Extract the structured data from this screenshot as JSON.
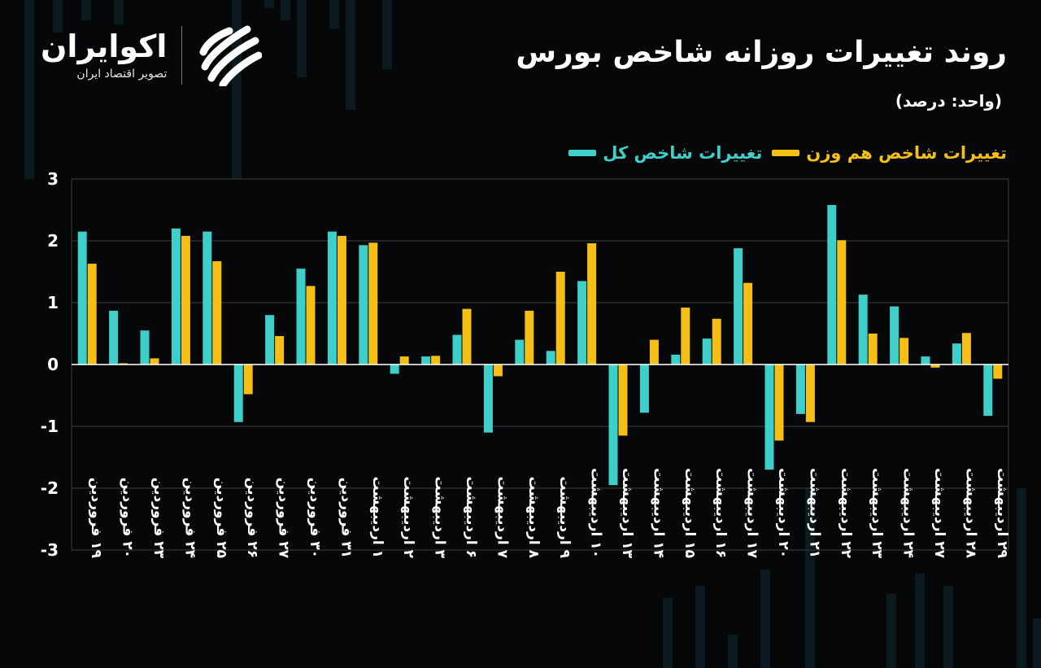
{
  "header": {
    "title": "روند تغییرات روزانه شاخص بورس",
    "unit": "(واحد: درصد)"
  },
  "logo": {
    "brand": "اکوایران",
    "tagline": "تصویر اقتصاد ایران",
    "icon": "ecoiran-swirl-icon"
  },
  "colors": {
    "background": "#050708",
    "total_index": "#3ecfca",
    "equal_weight": "#f6bf15",
    "grid": "#3a3d40"
  },
  "chart_data": {
    "type": "bar",
    "title": "روند تغییرات روزانه شاخص بورس",
    "ylabel": "(واحد: درصد)",
    "ylim": [
      -3,
      3
    ],
    "yticks": [
      3,
      2,
      1,
      0,
      -1,
      -2,
      -3
    ],
    "ytick_labels": [
      "3",
      "2",
      "1",
      "0",
      "-1",
      "-2",
      "-3"
    ],
    "grid": true,
    "legend_position": "top-right",
    "categories": [
      "۱۹ فروردین",
      "۲۰ فروردین",
      "۲۳ فروردین",
      "۲۴ فروردین",
      "۲۵ فروردین",
      "۲۶ فروردین",
      "۲۷ فروردین",
      "۳۰ فروردین",
      "۳۱ فروردین",
      "۱ اردیبهشت",
      "۲ اردیبهشت",
      "۳ اردیبهشت",
      "۶ اردیبهشت",
      "۷ اردیبهشت",
      "۸ اردیبهشت",
      "۹ اردیبهشت",
      "۱۰ اردیبهشت",
      "۱۳ اردیبهشت",
      "۱۴ اردیبهشت",
      "۱۵ اردیبهشت",
      "۱۶ اردیبهشت",
      "۱۷ اردیبهشت",
      "۲۰ اردیبهشت",
      "۲۱ اردیبهشت",
      "۲۲ اردیبهشت",
      "۲۳ اردیبهشت",
      "۲۴ اردیبهشت",
      "۲۷ اردیبهشت",
      "۲۸ اردیبهشت",
      "۲۹ اردیبهشت"
    ],
    "series": [
      {
        "name": "تغییرات شاخص کل",
        "color": "#3ecfca",
        "values": [
          2.15,
          0.87,
          0.55,
          2.2,
          2.15,
          -0.93,
          0.8,
          1.55,
          2.15,
          1.93,
          -0.15,
          0.13,
          0.48,
          -1.1,
          0.4,
          0.22,
          1.35,
          -1.95,
          -0.78,
          0.16,
          0.42,
          1.88,
          -1.7,
          -0.8,
          2.58,
          1.13,
          0.94,
          0.13,
          0.34,
          -0.83
        ]
      },
      {
        "name": "تغییرات شاخص هم وزن",
        "color": "#f6bf15",
        "values": [
          1.63,
          0.02,
          0.1,
          2.08,
          1.67,
          -0.48,
          0.46,
          1.27,
          2.08,
          1.97,
          0.13,
          0.14,
          0.9,
          -0.19,
          0.87,
          1.5,
          1.96,
          -1.15,
          0.4,
          0.92,
          0.74,
          1.32,
          -1.23,
          -0.93,
          2.01,
          0.5,
          0.43,
          -0.05,
          0.51,
          -0.23
        ]
      }
    ]
  }
}
